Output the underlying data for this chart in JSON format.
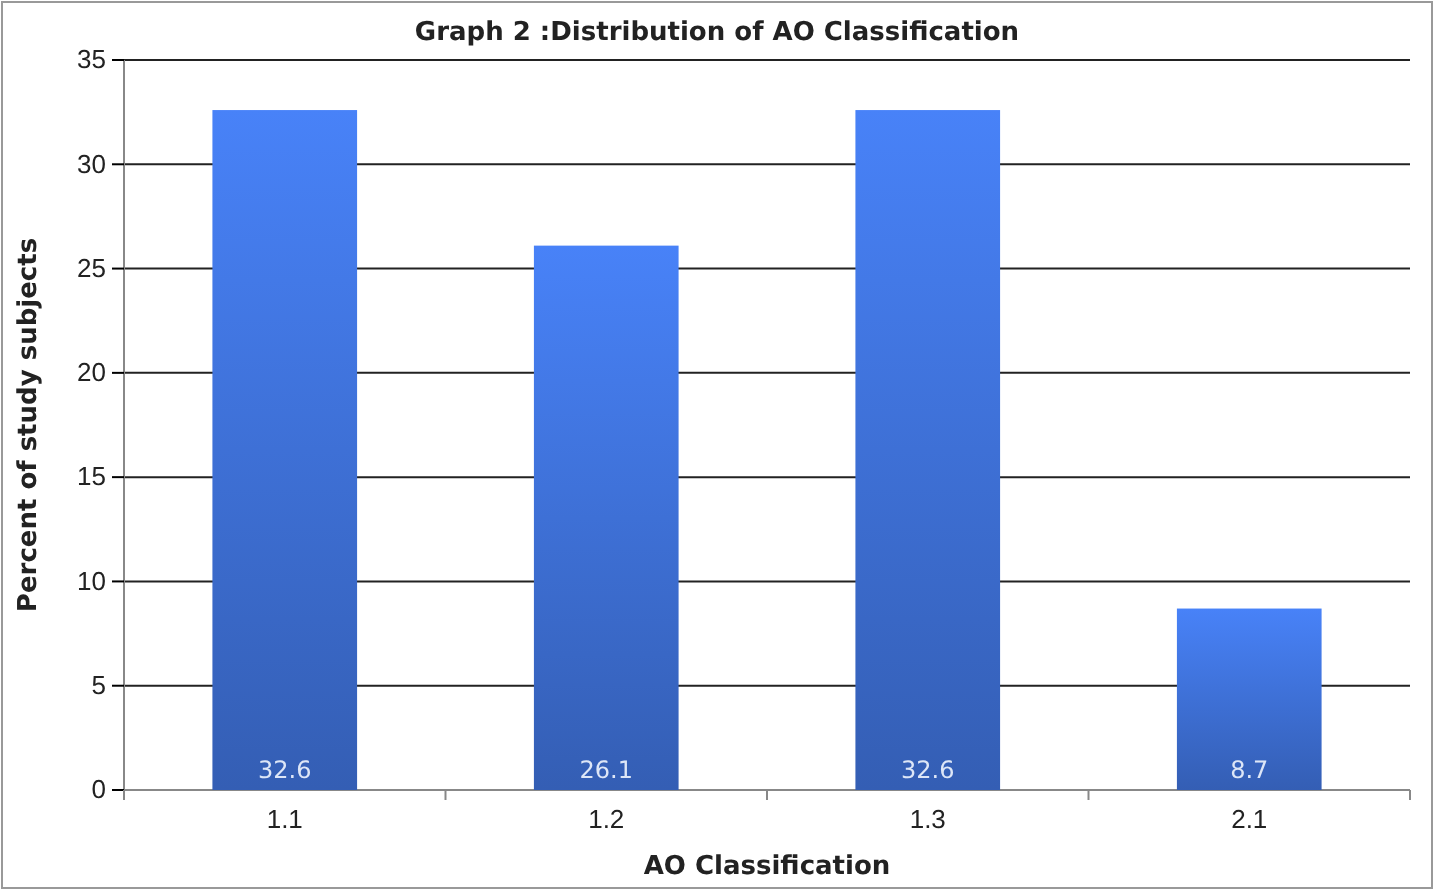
{
  "chart_data": {
    "type": "bar",
    "title": "Graph 2 :Distribution of AO Classification",
    "xlabel": "AO Classification",
    "ylabel": "Percent of study subjects",
    "categories": [
      "1.1",
      "1.2",
      "1.3",
      "2.1"
    ],
    "values": [
      32.6,
      26.1,
      32.6,
      8.7
    ],
    "color": "#3a69c8",
    "ylim": [
      0,
      35
    ],
    "yticks": [
      0,
      5,
      10,
      15,
      20,
      25,
      30,
      35
    ],
    "grid": "y",
    "data_labels": true
  }
}
